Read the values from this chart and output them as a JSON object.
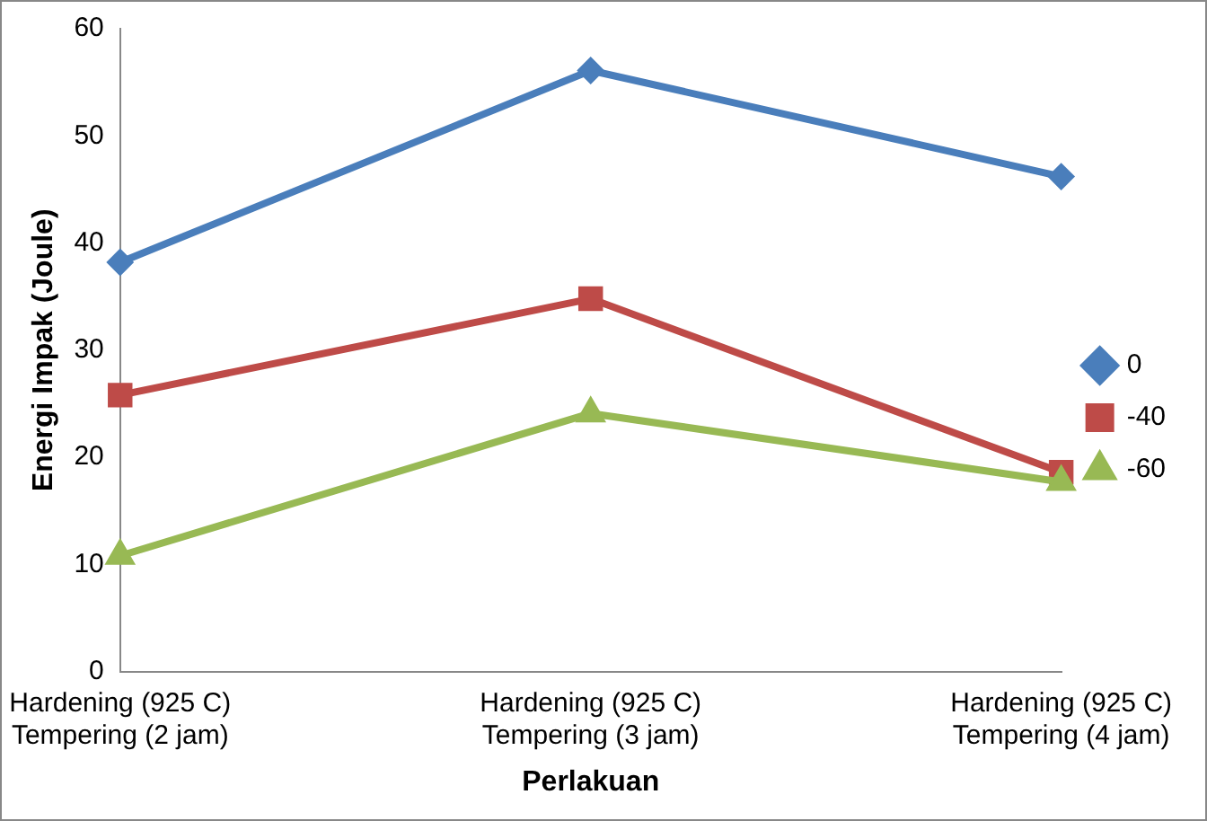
{
  "chart_data": {
    "type": "line",
    "xlabel": "Perlakuan",
    "ylabel": "Energi Impak (Joule)",
    "categories": [
      "Hardening (925 C)\nTempering (2 jam)",
      "Hardening (925 C)\nTempering (3 jam)",
      "Hardening (925 C)\nTempering (4 jam)"
    ],
    "series": [
      {
        "name": "0",
        "color": "#4a7ebb",
        "marker": "diamond",
        "values": [
          38.2,
          56.1,
          46.2
        ]
      },
      {
        "name": "-40",
        "color": "#be4b48",
        "marker": "square",
        "values": [
          25.8,
          34.8,
          18.6
        ]
      },
      {
        "name": "-60",
        "color": "#98b954",
        "marker": "triangle",
        "values": [
          10.8,
          24.1,
          17.7
        ]
      }
    ],
    "ylim": [
      0,
      60
    ],
    "yticks": [
      0,
      10,
      20,
      30,
      40,
      50,
      60
    ],
    "grid": false,
    "legend": "right"
  }
}
